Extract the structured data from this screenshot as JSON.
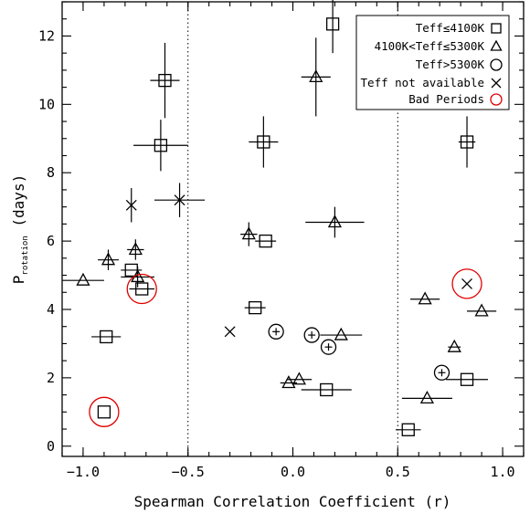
{
  "chart_data": {
    "type": "scatter",
    "xlabel": "Spearman Correlation Coefficient (r)",
    "ylabel": "P",
    "ylabel_sub": "rotation",
    "ylabel_unit": " (days)",
    "xlim": [
      -1.1,
      1.1
    ],
    "ylim": [
      -0.3,
      13
    ],
    "xticks": [
      {
        "v": -1.0,
        "label": "−1.0"
      },
      {
        "v": -0.5,
        "label": "−0.5"
      },
      {
        "v": 0.0,
        "label": "0.0"
      },
      {
        "v": 0.5,
        "label": "0.5"
      },
      {
        "v": 1.0,
        "label": "1.0"
      }
    ],
    "yticks": [
      {
        "v": 0,
        "label": "0"
      },
      {
        "v": 2,
        "label": "2"
      },
      {
        "v": 4,
        "label": "4"
      },
      {
        "v": 6,
        "label": "6"
      },
      {
        "v": 8,
        "label": "8"
      },
      {
        "v": 10,
        "label": "10"
      },
      {
        "v": 12,
        "label": "12"
      }
    ],
    "vlines": [
      -0.5,
      0.5
    ],
    "legend": {
      "position": "top-right",
      "entries": [
        {
          "label": "Teff≤4100K",
          "marker": "square"
        },
        {
          "label": "4100K<Teff≤5300K",
          "marker": "triangle"
        },
        {
          "label": "Teff>5300K",
          "marker": "circle"
        },
        {
          "label": "Teff not available",
          "marker": "cross"
        },
        {
          "label": "Bad Periods",
          "marker": "bad"
        }
      ]
    },
    "series": [
      {
        "marker": "square",
        "points": [
          {
            "x": 0.19,
            "y": 12.35,
            "xerr": 0.0,
            "yerr": 0.85
          },
          {
            "x": -0.61,
            "y": 10.7,
            "xerr": 0.07,
            "yerr": 1.1
          },
          {
            "x": -0.14,
            "y": 8.9,
            "xerr": 0.07,
            "yerr": 0.75
          },
          {
            "x": -0.63,
            "y": 8.8,
            "xerr": 0.13,
            "yerr": 0.75
          },
          {
            "x": 0.83,
            "y": 8.9,
            "xerr": 0.04,
            "yerr": 0.75
          },
          {
            "x": -0.13,
            "y": 6.0,
            "xerr": 0.05,
            "yerr": 0.0
          },
          {
            "x": -0.77,
            "y": 5.15,
            "xerr": 0.05,
            "yerr": 0.0
          },
          {
            "x": -0.72,
            "y": 4.6,
            "xerr": 0.06,
            "yerr": 0.0
          },
          {
            "x": -0.18,
            "y": 4.05,
            "xerr": 0.05,
            "yerr": 0.0
          },
          {
            "x": -0.89,
            "y": 3.2,
            "xerr": 0.07,
            "yerr": 0.0
          },
          {
            "x": 0.16,
            "y": 1.65,
            "xerr": 0.12,
            "yerr": 0.0
          },
          {
            "x": 0.83,
            "y": 1.95,
            "xerr": 0.1,
            "yerr": 0.0
          },
          {
            "x": 0.55,
            "y": 0.48,
            "xerr": 0.06,
            "yerr": 0.0
          },
          {
            "x": -0.9,
            "y": 1.0,
            "xerr": 0.0,
            "yerr": 0.0
          }
        ]
      },
      {
        "marker": "triangle",
        "points": [
          {
            "x": 0.11,
            "y": 10.8,
            "xerr": 0.07,
            "yerr": 1.15
          },
          {
            "x": 0.2,
            "y": 6.55,
            "xerr": 0.14,
            "yerr": 0.45
          },
          {
            "x": -0.21,
            "y": 6.2,
            "xerr": 0.04,
            "yerr": 0.35
          },
          {
            "x": -0.75,
            "y": 5.75,
            "xerr": 0.04,
            "yerr": 0.3
          },
          {
            "x": -0.88,
            "y": 5.45,
            "xerr": 0.05,
            "yerr": 0.3
          },
          {
            "x": -0.74,
            "y": 4.95,
            "xerr": 0.08,
            "yerr": 0.3
          },
          {
            "x": -1.0,
            "y": 4.85,
            "xerr": 0.1,
            "yerr": 0.0
          },
          {
            "x": 0.63,
            "y": 4.3,
            "xerr": 0.07,
            "yerr": 0.0
          },
          {
            "x": 0.9,
            "y": 3.95,
            "xerr": 0.07,
            "yerr": 0.0
          },
          {
            "x": 0.23,
            "y": 3.25,
            "xerr": 0.1,
            "yerr": 0.0
          },
          {
            "x": 0.77,
            "y": 2.9,
            "xerr": 0.03,
            "yerr": 0.0
          },
          {
            "x": -0.02,
            "y": 1.85,
            "xerr": 0.04,
            "yerr": 0.0
          },
          {
            "x": 0.03,
            "y": 1.95,
            "xerr": 0.06,
            "yerr": 0.0
          },
          {
            "x": 0.64,
            "y": 1.4,
            "xerr": 0.12,
            "yerr": 0.0
          }
        ]
      },
      {
        "marker": "circle",
        "points": [
          {
            "x": -0.08,
            "y": 3.35,
            "xerr": 0.0,
            "yerr": 0.0
          },
          {
            "x": 0.09,
            "y": 3.25,
            "xerr": 0.0,
            "yerr": 0.0
          },
          {
            "x": 0.17,
            "y": 2.9,
            "xerr": 0.0,
            "yerr": 0.0
          },
          {
            "x": 0.71,
            "y": 2.15,
            "xerr": 0.0,
            "yerr": 0.0
          }
        ]
      },
      {
        "marker": "cross",
        "points": [
          {
            "x": -0.77,
            "y": 7.05,
            "xerr": 0.0,
            "yerr": 0.5
          },
          {
            "x": -0.54,
            "y": 7.2,
            "xerr": 0.12,
            "yerr": 0.5
          },
          {
            "x": -0.3,
            "y": 3.35,
            "xerr": 0.0,
            "yerr": 0.0
          },
          {
            "x": 0.83,
            "y": 4.75,
            "xerr": 0.0,
            "yerr": 0.0
          }
        ]
      }
    ],
    "bad_periods": [
      {
        "x": -0.9,
        "y": 1.0
      },
      {
        "x": -0.72,
        "y": 4.6
      },
      {
        "x": 0.83,
        "y": 4.75
      }
    ]
  }
}
